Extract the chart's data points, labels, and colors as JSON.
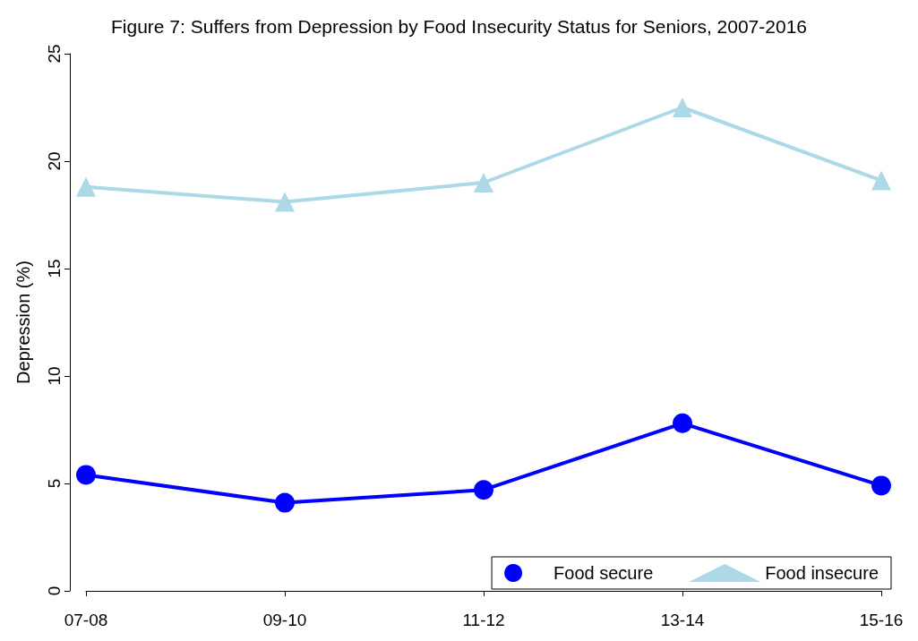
{
  "chart_data": {
    "type": "line",
    "title": "Figure 7: Suffers from Depression by Food Insecurity Status for Seniors, 2007-2016",
    "ylabel": "Depression (%)",
    "categories": [
      "07-08",
      "09-10",
      "11-12",
      "13-14",
      "15-16"
    ],
    "series": [
      {
        "name": "Food secure",
        "color": "#0000ff",
        "marker": "circle",
        "values": [
          5.4,
          4.1,
          4.7,
          7.8,
          4.9
        ]
      },
      {
        "name": "Food insecure",
        "color": "#add8e6",
        "marker": "triangle",
        "values": [
          18.8,
          18.1,
          19.0,
          22.5,
          19.1
        ]
      }
    ],
    "ylim": [
      0,
      25
    ],
    "yticks": [
      0,
      5,
      10,
      15,
      20,
      25
    ],
    "grid": false,
    "legend": "bottom right",
    "line_style": "solid"
  }
}
